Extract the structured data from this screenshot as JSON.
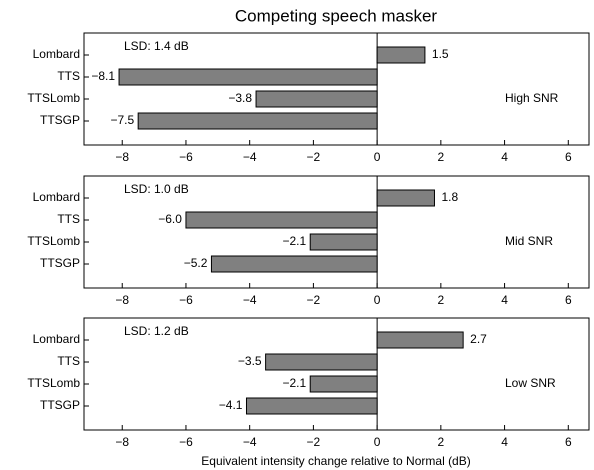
{
  "chart_data": [
    {
      "type": "bar",
      "orientation": "horizontal",
      "title": "Competing speech masker",
      "categories": [
        "Lombard",
        "TTS",
        "TTSLomb",
        "TTSGP"
      ],
      "values": [
        1.5,
        -8.1,
        -3.8,
        -7.5
      ],
      "value_labels": [
        "1.5",
        "−8.1",
        "−3.8",
        "−7.5"
      ],
      "color": "#808080",
      "annotations": [
        "LSD: 1.4 dB",
        "High SNR"
      ],
      "xlim": [
        -9.2,
        6.65
      ],
      "xticks": [
        {
          "value": -8,
          "label": "−8"
        },
        {
          "value": -6,
          "label": "−6"
        },
        {
          "value": -4,
          "label": "−4"
        },
        {
          "value": -2,
          "label": "−2"
        },
        0,
        2,
        4,
        6
      ]
    },
    {
      "type": "bar",
      "orientation": "horizontal",
      "categories": [
        "Lombard",
        "TTS",
        "TTSLomb",
        "TTSGP"
      ],
      "values": [
        1.8,
        -6.0,
        -2.1,
        -5.2
      ],
      "value_labels": [
        "1.8",
        "−6.0",
        "−2.1",
        "−5.2"
      ],
      "color": "#808080",
      "annotations": [
        "LSD: 1.0 dB",
        "Mid SNR"
      ],
      "xlim": [
        -9.2,
        6.65
      ],
      "xticks": [
        {
          "value": -8,
          "label": "−8"
        },
        {
          "value": -6,
          "label": "−6"
        },
        {
          "value": -4,
          "label": "−4"
        },
        {
          "value": -2,
          "label": "−2"
        },
        0,
        2,
        4,
        6
      ]
    },
    {
      "type": "bar",
      "orientation": "horizontal",
      "xlabel": "Equivalent intensity change relative to Normal (dB)",
      "categories": [
        "Lombard",
        "TTS",
        "TTSLomb",
        "TTSGP"
      ],
      "values": [
        2.7,
        -3.5,
        -2.1,
        -4.1
      ],
      "value_labels": [
        "2.7",
        "−3.5",
        "−2.1",
        "−4.1"
      ],
      "color": "#808080",
      "annotations": [
        "LSD: 1.2 dB",
        "Low SNR"
      ],
      "xlim": [
        -9.2,
        6.65
      ],
      "xticks": [
        {
          "value": -8,
          "label": "−8"
        },
        {
          "value": -6,
          "label": "−6"
        },
        {
          "value": -4,
          "label": "−4"
        },
        {
          "value": -2,
          "label": "−2"
        },
        0,
        2,
        4,
        6
      ]
    }
  ]
}
